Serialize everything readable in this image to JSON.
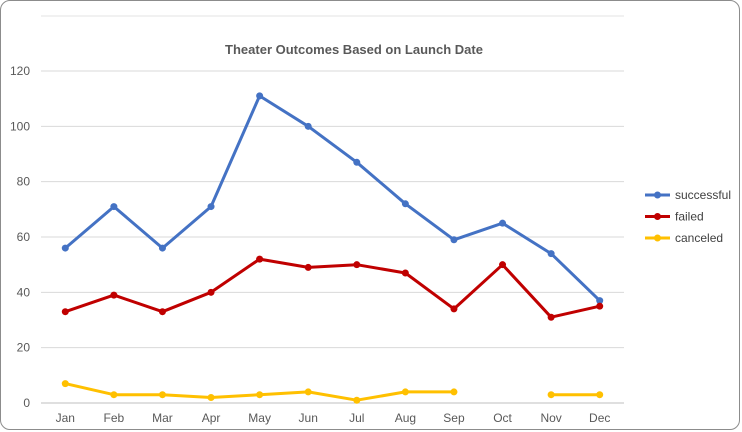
{
  "chart_data": {
    "type": "line",
    "title": "Theater Outcomes Based on Launch Date",
    "xlabel": "",
    "ylabel": "",
    "categories": [
      "Jan",
      "Feb",
      "Mar",
      "Apr",
      "May",
      "Jun",
      "Jul",
      "Aug",
      "Sep",
      "Oct",
      "Nov",
      "Dec"
    ],
    "ylim": [
      0,
      120
    ],
    "yticks": [
      "0",
      "20",
      "40",
      "60",
      "80",
      "100",
      "120"
    ],
    "grid": true,
    "legend_position": "right",
    "series": [
      {
        "name": "successful",
        "color": "#4472C4",
        "values": [
          56,
          71,
          56,
          71,
          111,
          100,
          87,
          72,
          59,
          65,
          54,
          37
        ]
      },
      {
        "name": "failed",
        "color": "#C00000",
        "values": [
          33,
          39,
          33,
          40,
          52,
          49,
          50,
          47,
          34,
          50,
          31,
          35
        ]
      },
      {
        "name": "canceled",
        "color": "#FFC000",
        "values": [
          7,
          3,
          3,
          2,
          3,
          4,
          1,
          4,
          4,
          null,
          3,
          3
        ]
      }
    ]
  }
}
